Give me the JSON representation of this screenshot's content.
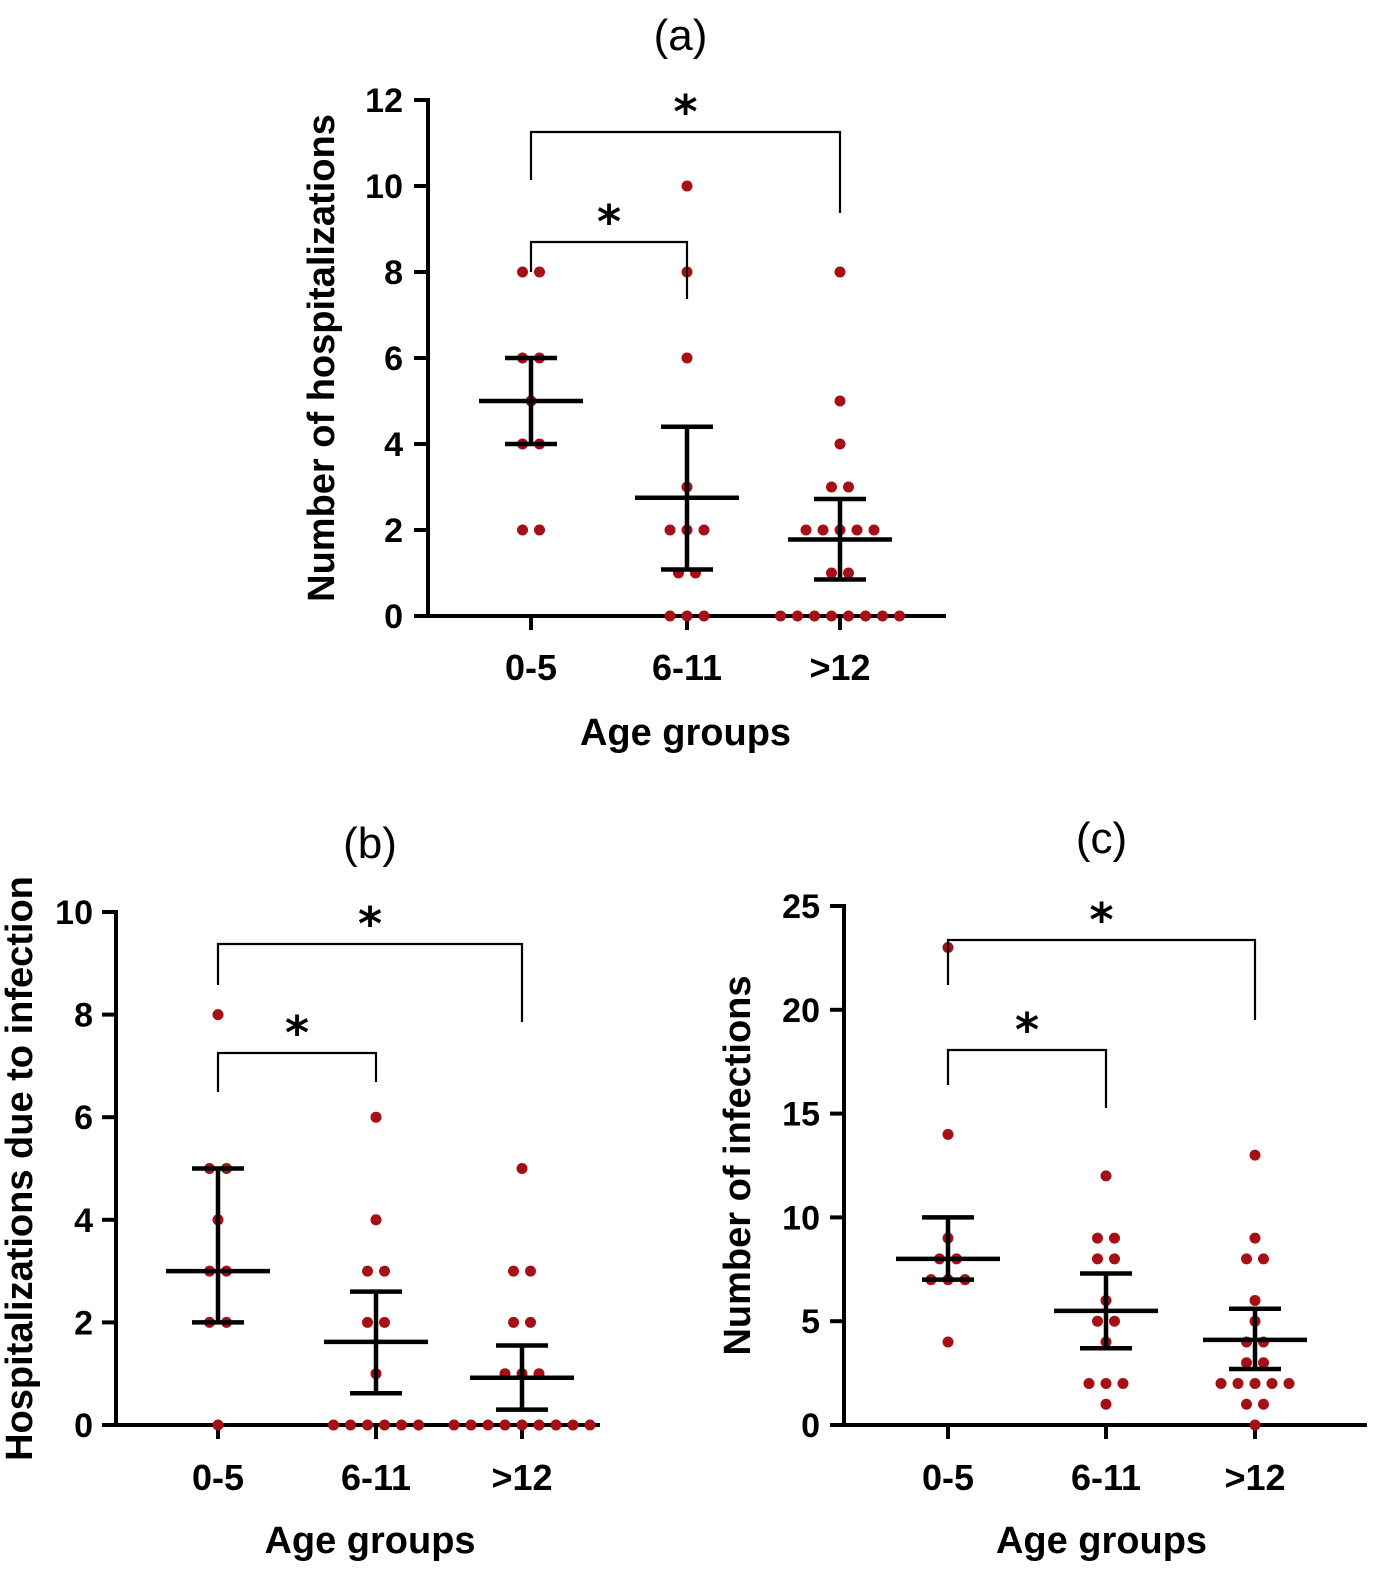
{
  "colors": {
    "dot": "#a50f15",
    "axis": "#000000"
  },
  "chart_data": [
    {
      "type": "scatter",
      "panel_label": "(a)",
      "xlabel": "Age groups",
      "ylabel": "Number of hospitalizations",
      "categories": [
        "0-5",
        "6-11",
        ">12"
      ],
      "ylim": [
        0,
        12
      ],
      "yticks": [
        "0",
        "2",
        "4",
        "6",
        "8",
        "10",
        "12"
      ],
      "points": [
        [
          8,
          8,
          6,
          6,
          5,
          4,
          4,
          2,
          2
        ],
        [
          10,
          8,
          6,
          3,
          2,
          2,
          2,
          1,
          1,
          0,
          0,
          0
        ],
        [
          8,
          5,
          4,
          3,
          3,
          2,
          2,
          2,
          2,
          2,
          1,
          1,
          0,
          0,
          0,
          0,
          0,
          0,
          0,
          0
        ]
      ],
      "center": [
        5,
        2.75,
        1.78
      ],
      "err_low": [
        4,
        1.08,
        0.85
      ],
      "err_high": [
        6,
        4.4,
        2.72
      ],
      "significance": [
        {
          "from": "0-5",
          "to": "6-11",
          "label": "*"
        },
        {
          "from": "0-5",
          "to": ">12",
          "label": "*"
        }
      ]
    },
    {
      "type": "scatter",
      "panel_label": "(b)",
      "xlabel": "Age groups",
      "ylabel": "Hospitalizations due to infection",
      "categories": [
        "0-5",
        "6-11",
        ">12"
      ],
      "ylim": [
        0,
        10
      ],
      "yticks": [
        "0",
        "2",
        "4",
        "6",
        "8",
        "10"
      ],
      "points": [
        [
          8,
          5,
          5,
          4,
          3,
          3,
          2,
          2,
          0
        ],
        [
          6,
          4,
          3,
          3,
          2,
          2,
          1,
          0,
          0,
          0,
          0,
          0,
          0
        ],
        [
          5,
          3,
          3,
          2,
          2,
          1,
          1,
          1,
          0,
          0,
          0,
          0,
          0,
          0,
          0,
          0,
          0
        ]
      ],
      "center": [
        3,
        1.62,
        0.92
      ],
      "err_low": [
        2,
        0.62,
        0.3
      ],
      "err_high": [
        5,
        2.6,
        1.55
      ],
      "significance": [
        {
          "from": "0-5",
          "to": "6-11",
          "label": "*"
        },
        {
          "from": "0-5",
          "to": ">12",
          "label": "*"
        }
      ]
    },
    {
      "type": "scatter",
      "panel_label": "(c)",
      "xlabel": "Age groups",
      "ylabel": "Number of infections",
      "categories": [
        "0-5",
        "6-11",
        ">12"
      ],
      "ylim": [
        0,
        25
      ],
      "yticks": [
        "0",
        "5",
        "10",
        "15",
        "20",
        "25"
      ],
      "points": [
        [
          23,
          14,
          9,
          8,
          8,
          7,
          7,
          7,
          4
        ],
        [
          12,
          9,
          9,
          8,
          8,
          6,
          5,
          5,
          4,
          2,
          2,
          2,
          1
        ],
        [
          13,
          9,
          8,
          8,
          6,
          5,
          4,
          4,
          3,
          3,
          2,
          2,
          2,
          2,
          2,
          1,
          1,
          0
        ]
      ],
      "center": [
        8,
        5.5,
        4.1
      ],
      "err_low": [
        7,
        3.7,
        2.7
      ],
      "err_high": [
        10,
        7.3,
        5.6
      ],
      "significance": [
        {
          "from": "0-5",
          "to": "6-11",
          "label": "*"
        },
        {
          "from": "0-5",
          "to": ">12",
          "label": "*"
        }
      ]
    }
  ]
}
